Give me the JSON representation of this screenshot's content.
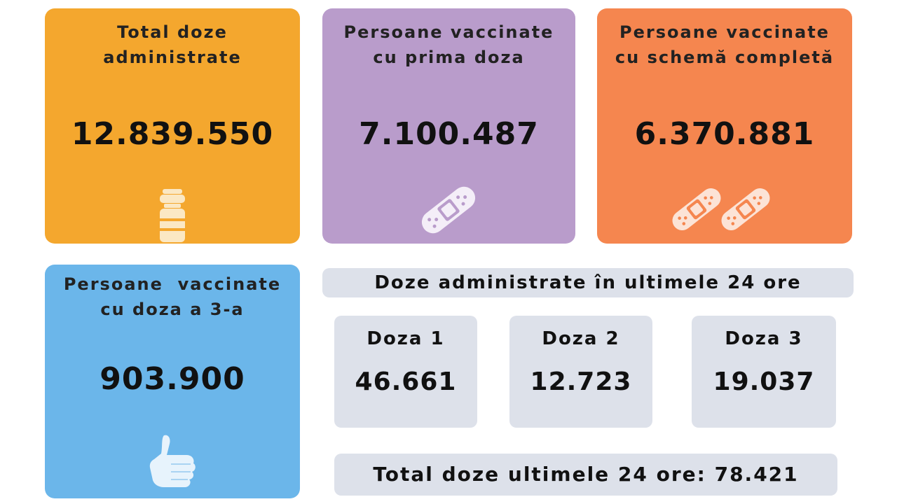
{
  "cards": {
    "total_doses": {
      "title_line1": "Total doze",
      "title_line2": "administrate",
      "value": "12.839.550",
      "icon": "vaccine-vial-icon",
      "color": "#f4a72e"
    },
    "first_dose": {
      "title_line1": "Persoane vaccinate",
      "title_line2": "cu prima doza",
      "value": "7.100.487",
      "icon": "bandage-icon",
      "color": "#b99ccb"
    },
    "complete_scheme": {
      "title_line1": "Persoane vaccinate",
      "title_line2": "cu schemă completă",
      "value": "6.370.881",
      "icon": "two-bandages-icon",
      "color": "#f5864f"
    },
    "third_dose": {
      "title_line1": "Persoane  vaccinate",
      "title_line2": "cu doza a 3-a",
      "value": "903.900",
      "icon": "thumbs-up-icon",
      "color": "#6bb6ea"
    }
  },
  "last24": {
    "header": "Doze administrate în ultimele 24 ore",
    "doses": [
      {
        "label": "Doza 1",
        "value": "46.661"
      },
      {
        "label": "Doza 2",
        "value": "12.723"
      },
      {
        "label": "Doza 3",
        "value": "19.037"
      }
    ],
    "total_text": "Total doze ultimele 24 ore: 78.421",
    "panel_color": "#dde1ea"
  }
}
